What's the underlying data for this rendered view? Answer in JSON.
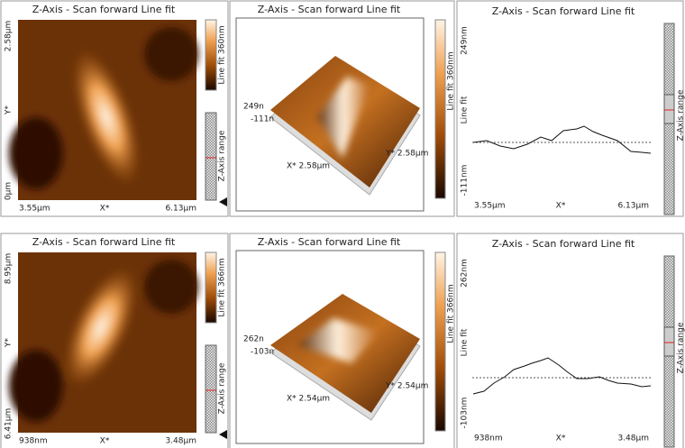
{
  "rows": [
    {
      "image_2d": {
        "title": "Z-Axis - Scan forward   Line fit",
        "y_max": "2.58µm",
        "y_label": "Y*",
        "y_min": "0µm",
        "x_min": "3.55µm",
        "x_label": "X*",
        "x_max": "6.13µm",
        "colorbar_label": "Line fit 360nm",
        "range_label": "Z-Axis range"
      },
      "view_3d": {
        "title": "Z-Axis - Scan forward   Line fit",
        "z_max": "249n",
        "z_min": "-111n",
        "x_size": "X* 2.58µm",
        "y_size": "Y* 2.58µm",
        "colorbar_label": "Line fit 360nm"
      },
      "profile": {
        "title": "Z-Axis - Scan forward   Line fit",
        "z_max": "249nm",
        "z_label": "Line fit",
        "z_min": "-111nm",
        "x_min": "3.55µm",
        "x_label": "X*",
        "x_max": "6.13µm",
        "range_label": "Z-Axis range"
      }
    },
    {
      "image_2d": {
        "title": "Z-Axis - Scan forward   Line fit",
        "y_max": "8.95µm",
        "y_label": "Y*",
        "y_min": "6.41µm",
        "x_min": "938nm",
        "x_label": "X*",
        "x_max": "3.48µm",
        "colorbar_label": "Line fit 366nm",
        "range_label": "Z-Axis range"
      },
      "view_3d": {
        "title": "Z-Axis - Scan forward   Line fit",
        "z_max": "262n",
        "z_min": "-103n",
        "x_size": "X* 2.54µm",
        "y_size": "Y* 2.54µm",
        "colorbar_label": "Line fit 366nm"
      },
      "profile": {
        "title": "Z-Axis - Scan forward   Line fit",
        "z_max": "262nm",
        "z_label": "Line fit",
        "z_min": "-103nm",
        "x_min": "938nm",
        "x_label": "X*",
        "x_max": "3.48µm",
        "range_label": "Z-Axis range"
      }
    }
  ]
}
